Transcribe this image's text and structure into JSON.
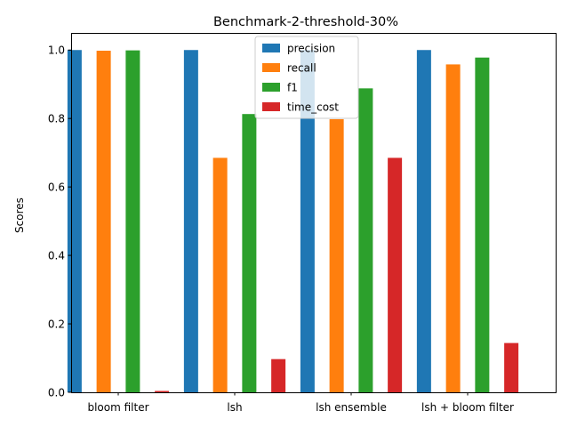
{
  "chart_data": {
    "type": "bar",
    "title": "Benchmark-2-threshold-30%",
    "xlabel": "",
    "ylabel": "Scores",
    "categories": [
      "bloom filter",
      "lsh",
      "lsh ensemble",
      "lsh + bloom filter"
    ],
    "series": [
      {
        "name": "precision",
        "color": "#1f77b4",
        "values": [
          1.0,
          1.0,
          1.0,
          1.0
        ]
      },
      {
        "name": "recall",
        "color": "#ff7f0e",
        "values": [
          0.998,
          0.685,
          0.798,
          0.958
        ]
      },
      {
        "name": "f1",
        "color": "#2ca02c",
        "values": [
          0.999,
          0.813,
          0.888,
          0.978
        ]
      },
      {
        "name": "time_cost",
        "color": "#d62728",
        "values": [
          0.004,
          0.097,
          0.685,
          0.144
        ]
      }
    ],
    "ylim": [
      0,
      1.05
    ],
    "yticks": [
      "0.0",
      "0.2",
      "0.4",
      "0.6",
      "0.8",
      "1.0"
    ],
    "grid": false,
    "legend": "top-center"
  }
}
